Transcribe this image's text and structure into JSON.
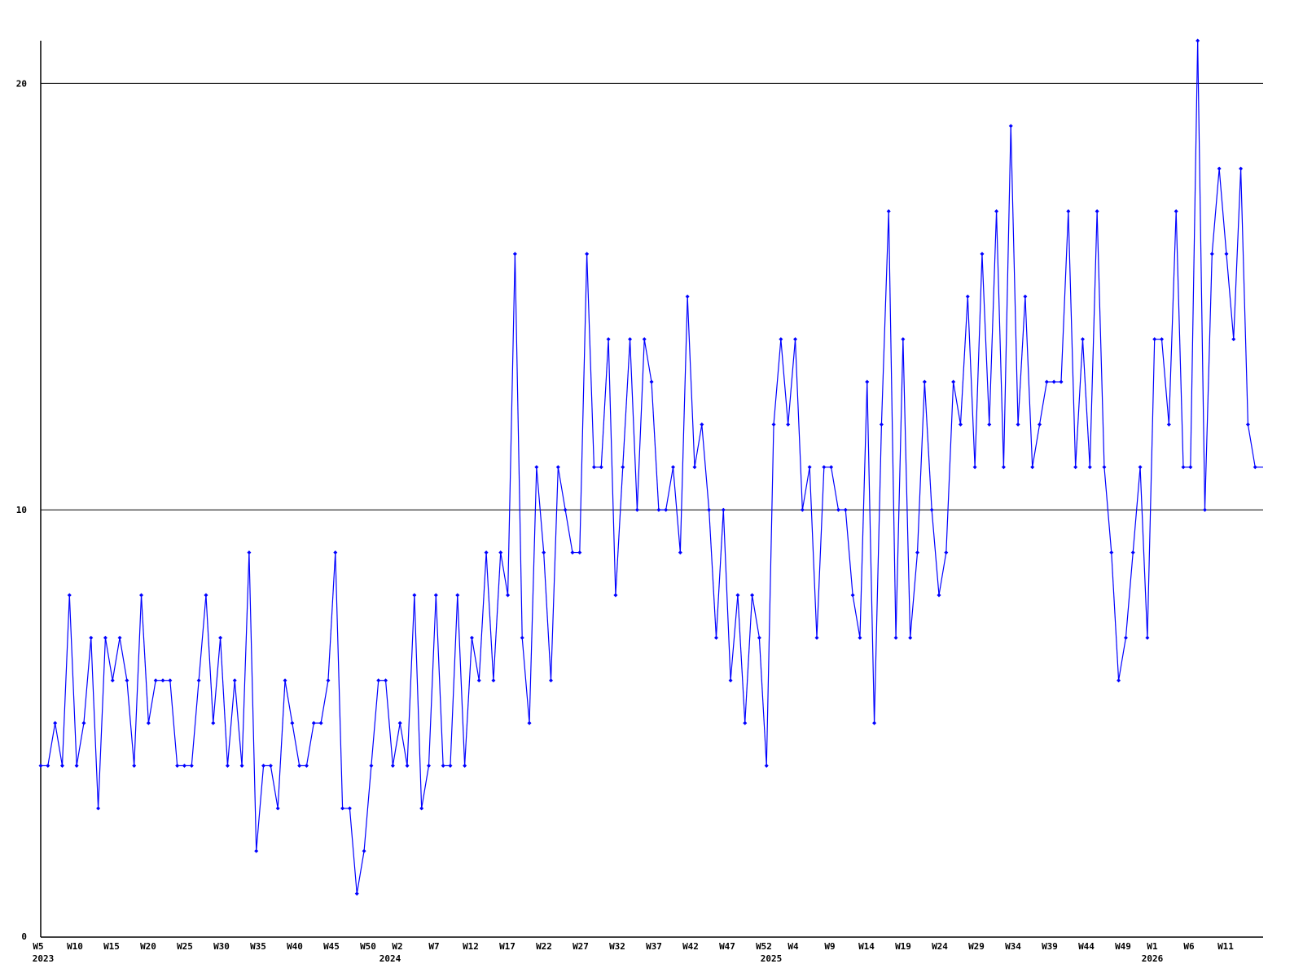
{
  "chart_data": {
    "type": "line",
    "title": "",
    "xlabel": "",
    "ylabel": "",
    "ylim": [
      0,
      21
    ],
    "y_ticks": [
      "0",
      "10",
      "20"
    ],
    "grid": "horizontal lines at y ticks",
    "legend": "none",
    "line_color": "#0000ff",
    "x_ticks": [
      "W5",
      "W10",
      "W15",
      "W20",
      "W25",
      "W30",
      "W35",
      "W40",
      "W45",
      "W50",
      "W2",
      "W7",
      "W12",
      "W17",
      "W22",
      "W27",
      "W32",
      "W37",
      "W42",
      "W47",
      "W52",
      "W4",
      "W9",
      "W14",
      "W19",
      "W24",
      "W29",
      "W34",
      "W39",
      "W44",
      "W49",
      "W1",
      "W6",
      "W11"
    ],
    "x_year_labels": [
      "2023",
      "2024",
      "2025",
      "2026"
    ],
    "x_range": [
      "2023 W5",
      "2026 W18"
    ],
    "series": [
      {
        "values": [
          4,
          4,
          5,
          4,
          8,
          4,
          5,
          7,
          3,
          7,
          6,
          7,
          6,
          4,
          8,
          5,
          6,
          6,
          6,
          4,
          4,
          4,
          6,
          8,
          5,
          7,
          4,
          6,
          4,
          9,
          2,
          4,
          4,
          3,
          6,
          5,
          4,
          4,
          5,
          5,
          6,
          9,
          3,
          3,
          1,
          2,
          4,
          6,
          6,
          4,
          5,
          4,
          8,
          3,
          4,
          8,
          4,
          4,
          8,
          4,
          7,
          6,
          9,
          6,
          9,
          8,
          16,
          7,
          5,
          11,
          9,
          6,
          11,
          10,
          9,
          9,
          16,
          11,
          11,
          14,
          8,
          11,
          14,
          10,
          14,
          13,
          10,
          10,
          11,
          9,
          15,
          11,
          12,
          10,
          7,
          10,
          6,
          8,
          5,
          8,
          7,
          4,
          12,
          14,
          12,
          14,
          10,
          11,
          7,
          11,
          11,
          10,
          10,
          8,
          7,
          13,
          5,
          12,
          17,
          7,
          14,
          7,
          9,
          13,
          10,
          8,
          9,
          13,
          12,
          15,
          11,
          16,
          12,
          17,
          11,
          19,
          12,
          15,
          11,
          12,
          13,
          13,
          13,
          17,
          11,
          14,
          11,
          17,
          11,
          9,
          6,
          7,
          9,
          11,
          7,
          14,
          14,
          12,
          17,
          11,
          11,
          21,
          10,
          16,
          18,
          16,
          14,
          18,
          12,
          11
        ]
      }
    ]
  }
}
